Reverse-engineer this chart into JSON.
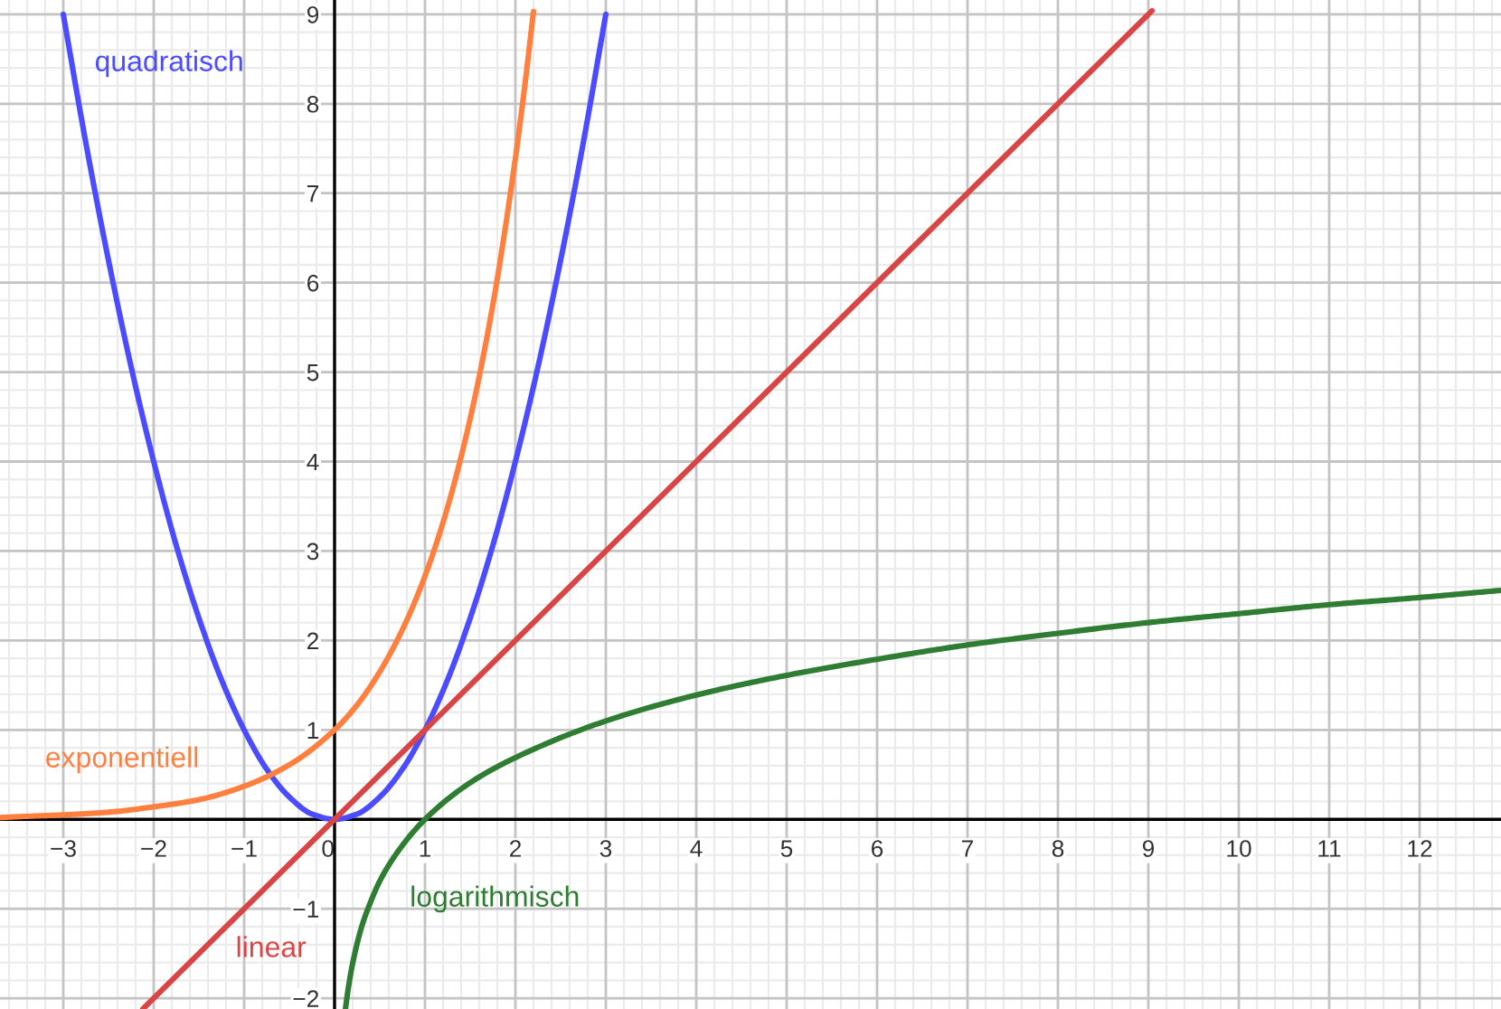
{
  "chart_data": {
    "type": "line",
    "xlim": [
      -3.7,
      12.9
    ],
    "ylim": [
      -2.12,
      9.16
    ],
    "xticks": [
      -3,
      -2,
      -1,
      0,
      1,
      2,
      3,
      4,
      5,
      6,
      7,
      8,
      9,
      10,
      11,
      12
    ],
    "yticks": [
      -2,
      -1,
      1,
      2,
      3,
      4,
      5,
      6,
      7,
      8,
      9
    ],
    "grid": true,
    "series": [
      {
        "name": "quadratisch",
        "color": "#4b4bff",
        "x": [
          -3.0,
          -2.75,
          -2.5,
          -2.25,
          -2.0,
          -1.75,
          -1.5,
          -1.25,
          -1.0,
          -0.75,
          -0.5,
          -0.25,
          0,
          0.25,
          0.5,
          0.75,
          1.0,
          1.25,
          1.5,
          1.75,
          2.0,
          2.25,
          2.5,
          2.75,
          3.0
        ],
        "values": [
          9.0,
          7.56,
          6.25,
          5.06,
          4.0,
          3.06,
          2.25,
          1.56,
          1.0,
          0.56,
          0.25,
          0.06,
          0,
          0.06,
          0.25,
          0.56,
          1.0,
          1.56,
          2.25,
          3.06,
          4.0,
          5.06,
          6.25,
          7.56,
          9.0
        ]
      },
      {
        "name": "exponentiell",
        "color": "#ff7f3f",
        "x": [
          -3.7,
          -3.5,
          -3.0,
          -2.5,
          -2.0,
          -1.5,
          -1.0,
          -0.5,
          0,
          0.25,
          0.5,
          0.75,
          1.0,
          1.25,
          1.5,
          1.75,
          2.0,
          2.1,
          2.2
        ],
        "values": [
          0.02,
          0.03,
          0.05,
          0.08,
          0.14,
          0.22,
          0.37,
          0.61,
          1.0,
          1.28,
          1.65,
          2.12,
          2.72,
          3.49,
          4.48,
          5.75,
          7.39,
          8.17,
          9.03
        ]
      },
      {
        "name": "linear",
        "color": "#d94545",
        "x": [
          -2.12,
          9.04
        ],
        "values": [
          -2.12,
          9.04
        ]
      },
      {
        "name": "logarithmisch",
        "color": "#2e7d32",
        "x": [
          0.12,
          0.15,
          0.2,
          0.3,
          0.4,
          0.5,
          0.7,
          1.0,
          1.5,
          2.0,
          3.0,
          4.0,
          5.0,
          6.0,
          7.0,
          8.0,
          9.0,
          10.0,
          11.0,
          12.0,
          12.9
        ],
        "values": [
          -2.12,
          -1.9,
          -1.61,
          -1.2,
          -0.92,
          -0.69,
          -0.36,
          0,
          0.41,
          0.69,
          1.1,
          1.39,
          1.61,
          1.79,
          1.95,
          2.08,
          2.2,
          2.3,
          2.4,
          2.48,
          2.56
        ]
      }
    ]
  }
}
